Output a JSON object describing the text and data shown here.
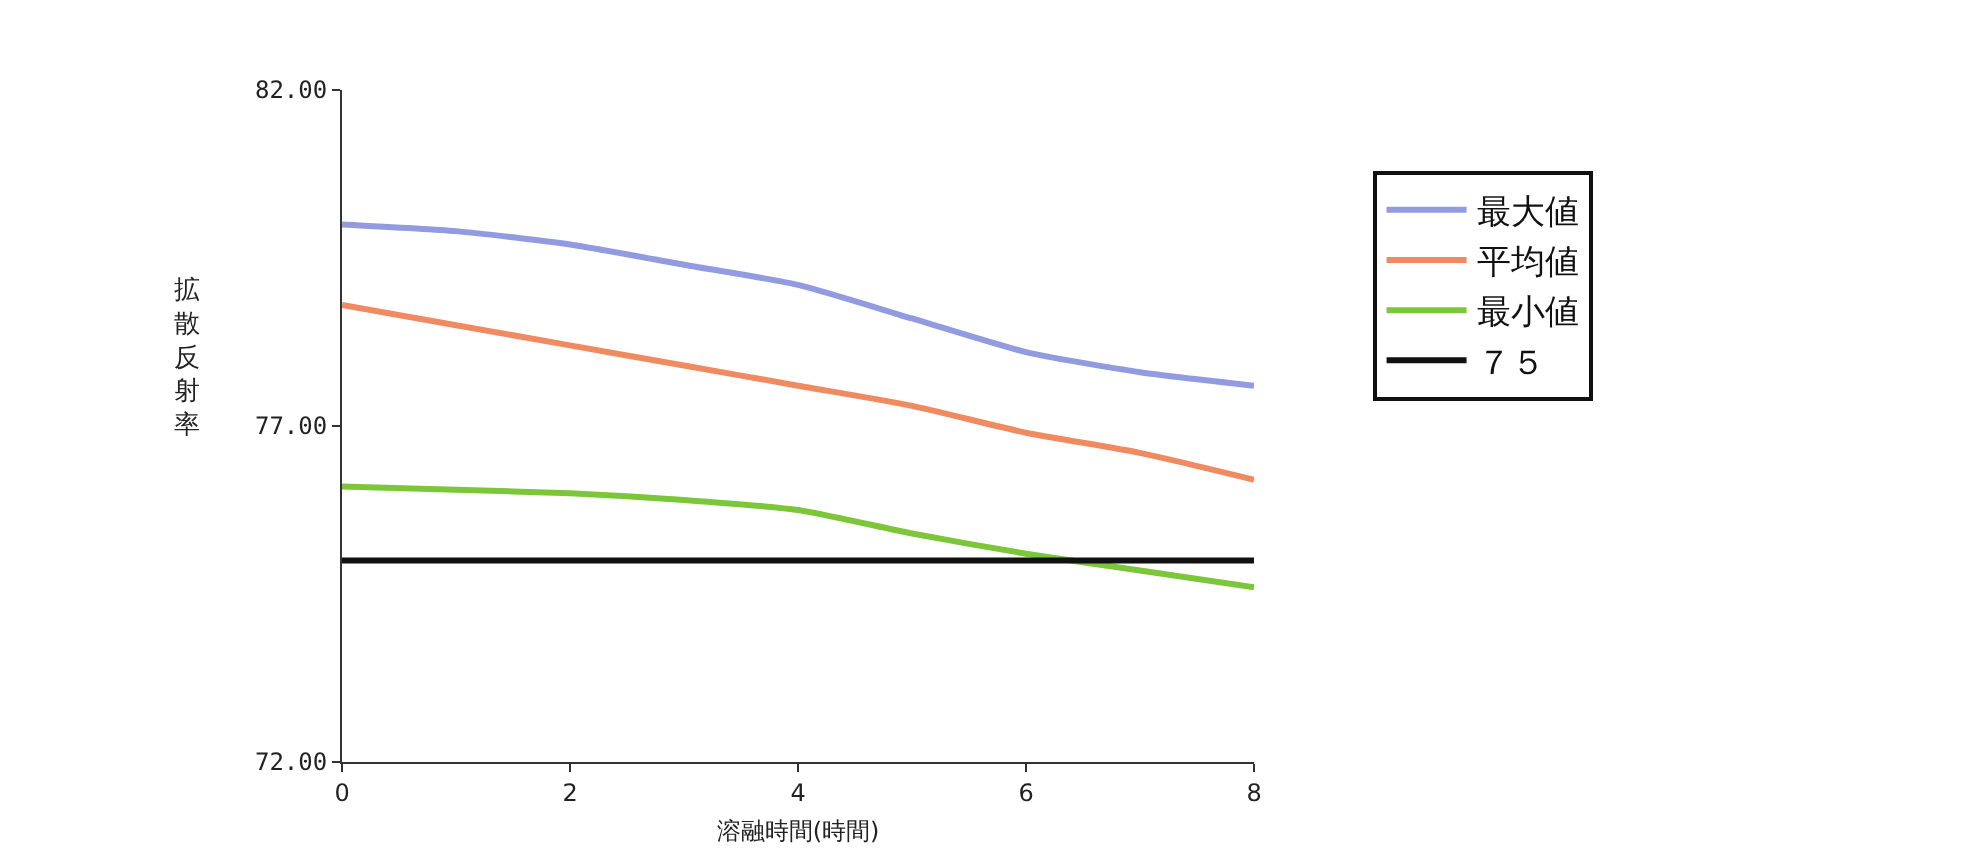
{
  "chart_data": {
    "type": "line",
    "xlabel": "溶融時間(時間)",
    "ylabel": "拡散反射率",
    "x": [
      0,
      1,
      2,
      3,
      4,
      5,
      6,
      7,
      8
    ],
    "series": [
      {
        "name": "最大値",
        "color": "#929be0",
        "values": [
          80.0,
          79.9,
          79.7,
          79.4,
          79.1,
          78.6,
          78.1,
          77.8,
          77.6
        ]
      },
      {
        "name": "平均値",
        "color": "#f08a60",
        "values": [
          78.8,
          78.5,
          78.2,
          77.9,
          77.6,
          77.3,
          76.9,
          76.6,
          76.2
        ]
      },
      {
        "name": "最小値",
        "color": "#7cc63a",
        "values": [
          76.1,
          76.05,
          76.0,
          75.9,
          75.75,
          75.4,
          75.1,
          74.85,
          74.6
        ]
      },
      {
        "name": "７５",
        "color": "#111111",
        "values": [
          75,
          75,
          75,
          75,
          75,
          75,
          75,
          75,
          75
        ]
      }
    ],
    "xlim": [
      0,
      8
    ],
    "xticks": [
      0,
      2,
      4,
      6,
      8
    ],
    "ylim": [
      72,
      82
    ],
    "yticks": [
      {
        "value": 72,
        "label": "72.00"
      },
      {
        "value": 77,
        "label": "77.00"
      },
      {
        "value": 82,
        "label": "82.00"
      }
    ],
    "grid": false,
    "legend": "right",
    "marker": "none",
    "line_style": "solid"
  }
}
